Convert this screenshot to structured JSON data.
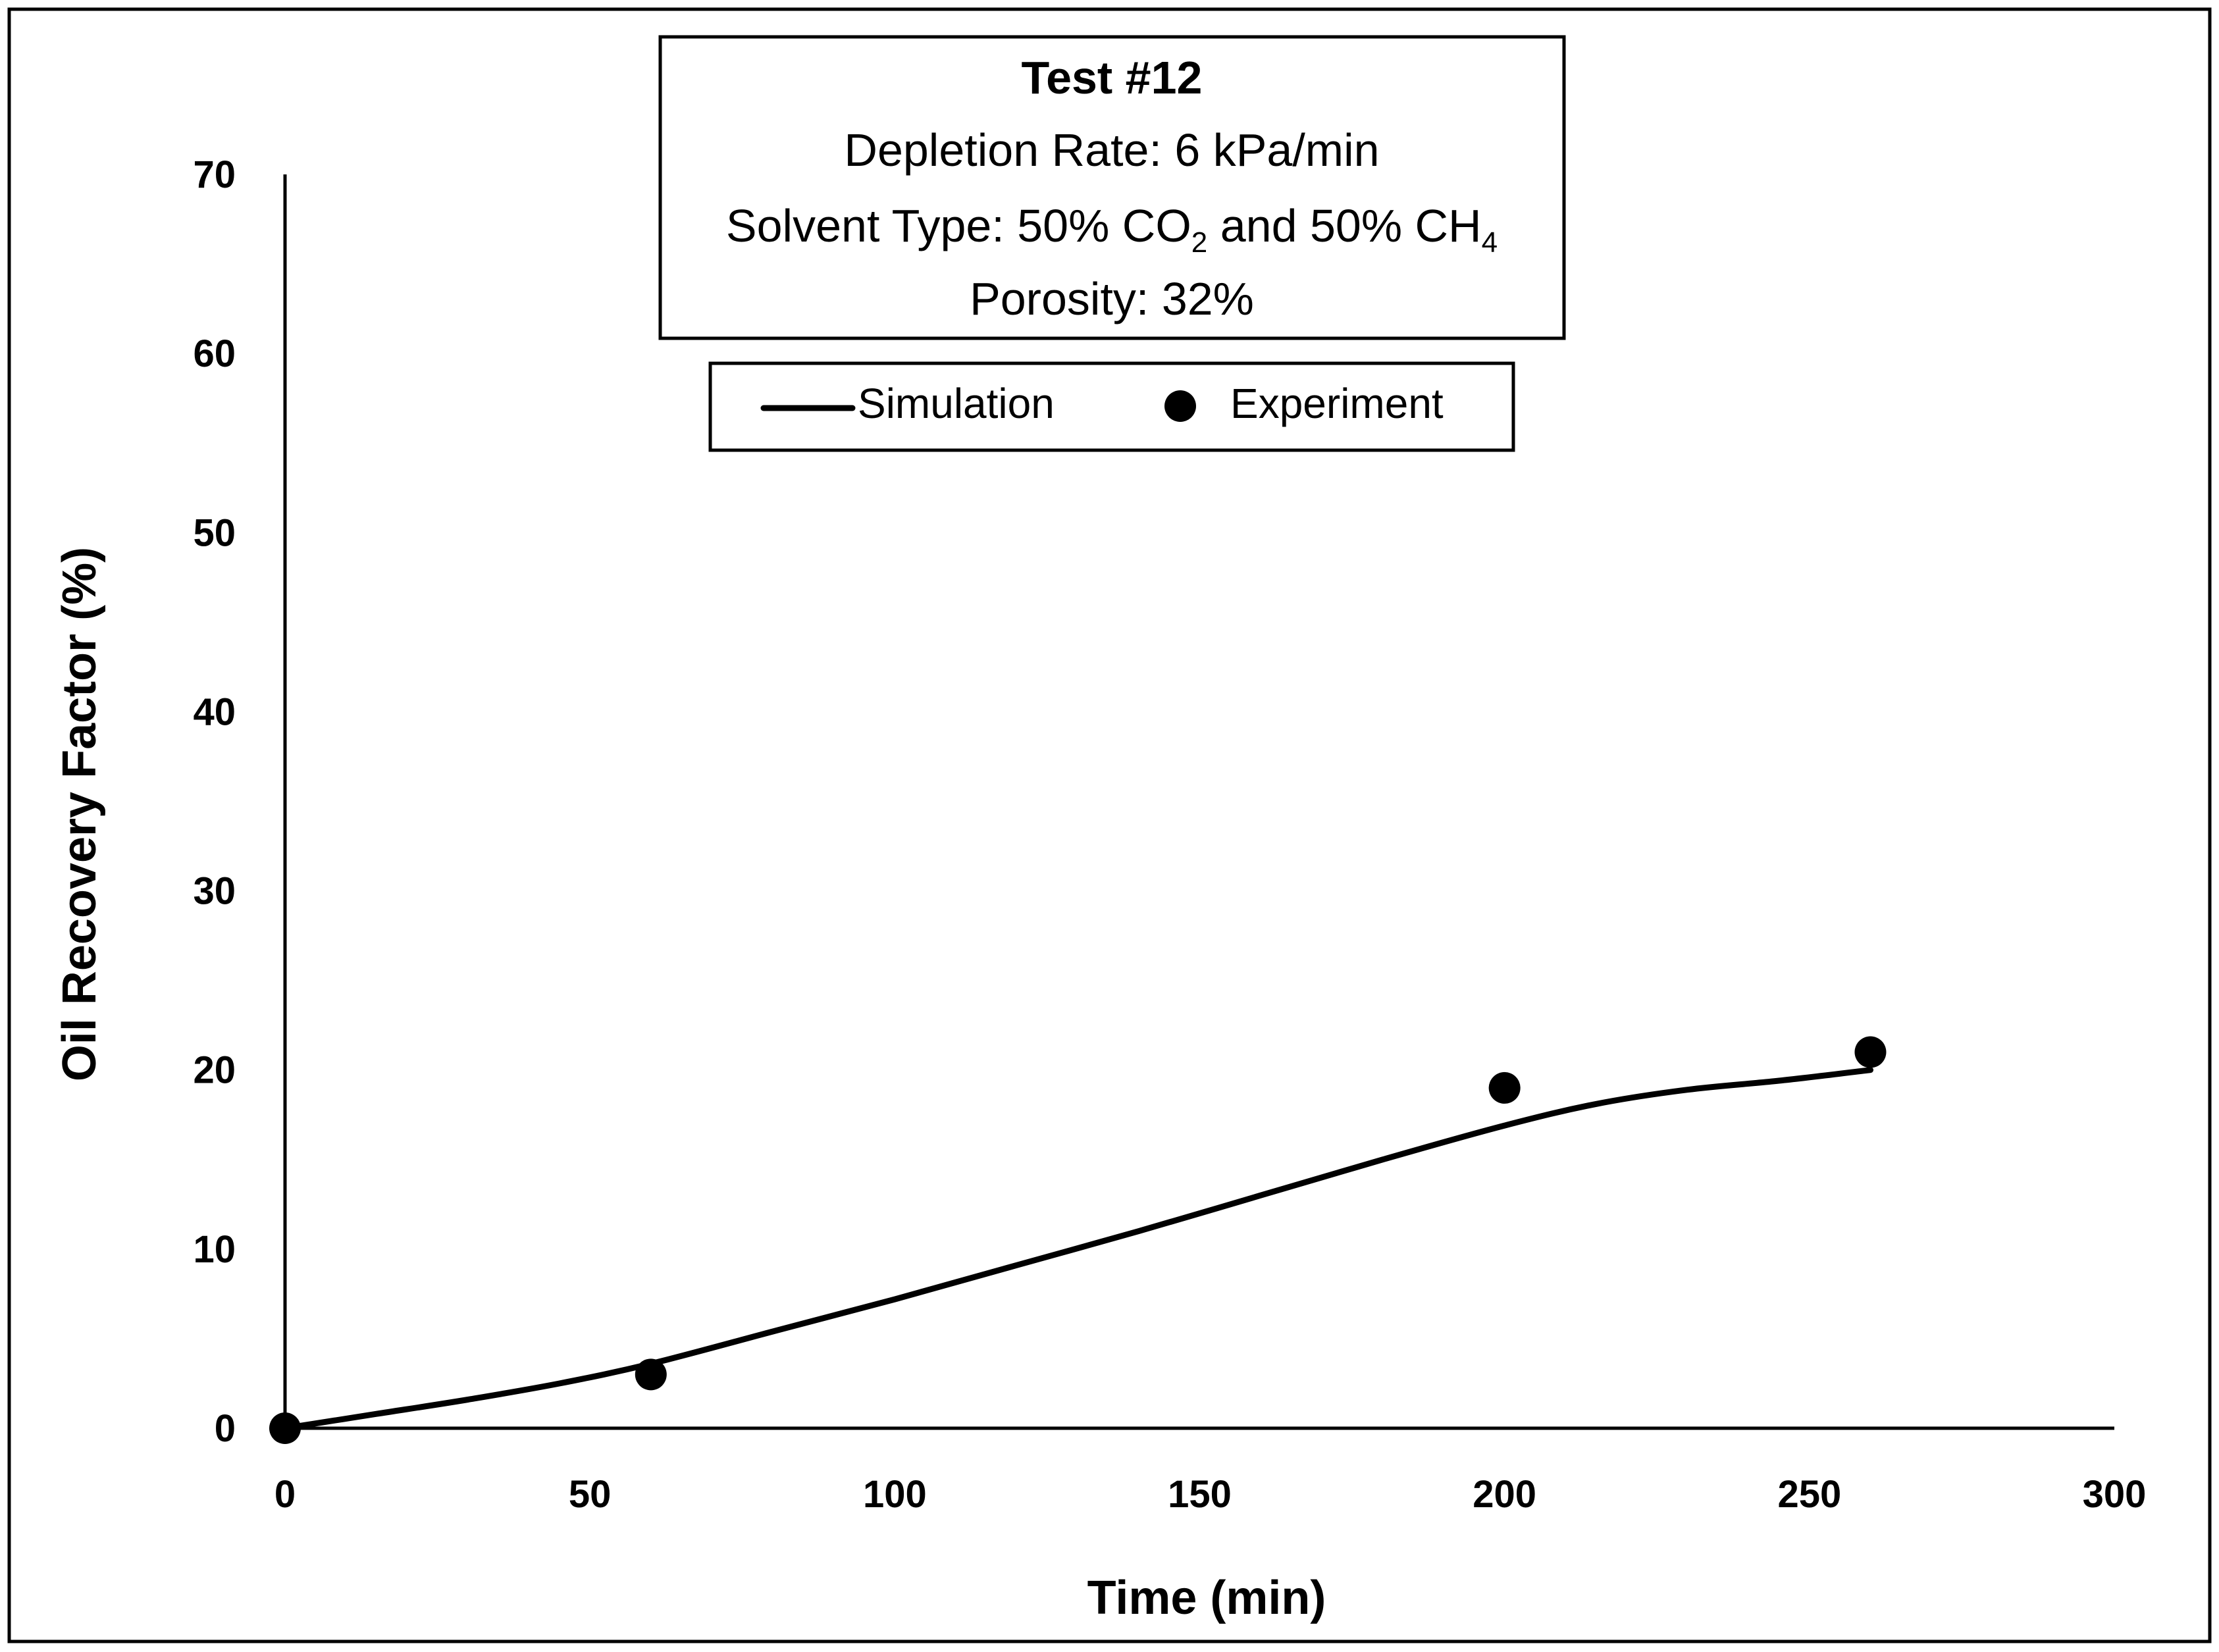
{
  "chart_data": {
    "type": "line+scatter",
    "xlabel": "Time (min)",
    "ylabel": "Oil Recovery Factor (%)",
    "xlim": [
      0,
      300
    ],
    "ylim": [
      0,
      70
    ],
    "xticks": [
      "0",
      "50",
      "100",
      "150",
      "200",
      "250",
      "300"
    ],
    "yticks": [
      "0",
      "10",
      "20",
      "30",
      "40",
      "50",
      "60",
      "70"
    ],
    "grid": false,
    "annotation": {
      "title": "Test #12",
      "line1": "Depletion Rate: 6 kPa/min",
      "line2_prefix": "Solvent Type: 50% CO",
      "line2_sub1": "2",
      "line2_mid": " and 50% CH",
      "line2_sub2": "4",
      "line3": "Porosity: 32%"
    },
    "legend": {
      "placement": "top-center",
      "simulation_label": "Simulation",
      "experiment_label": "Experiment"
    },
    "series": [
      {
        "name": "Simulation",
        "kind": "line",
        "color": "#000000",
        "x": [
          0,
          15,
          30,
          45,
          60,
          80,
          100,
          120,
          140,
          160,
          180,
          200,
          215,
          230,
          245,
          260
        ],
        "y": [
          0,
          0.8,
          1.6,
          2.5,
          3.6,
          5.4,
          7.2,
          9.1,
          11.0,
          13.0,
          15.0,
          16.9,
          18.1,
          18.9,
          19.4,
          20.0
        ]
      },
      {
        "name": "Experiment",
        "kind": "scatter",
        "color": "#000000",
        "x": [
          0,
          60,
          200,
          260
        ],
        "y": [
          0,
          3,
          19,
          21
        ]
      }
    ]
  }
}
